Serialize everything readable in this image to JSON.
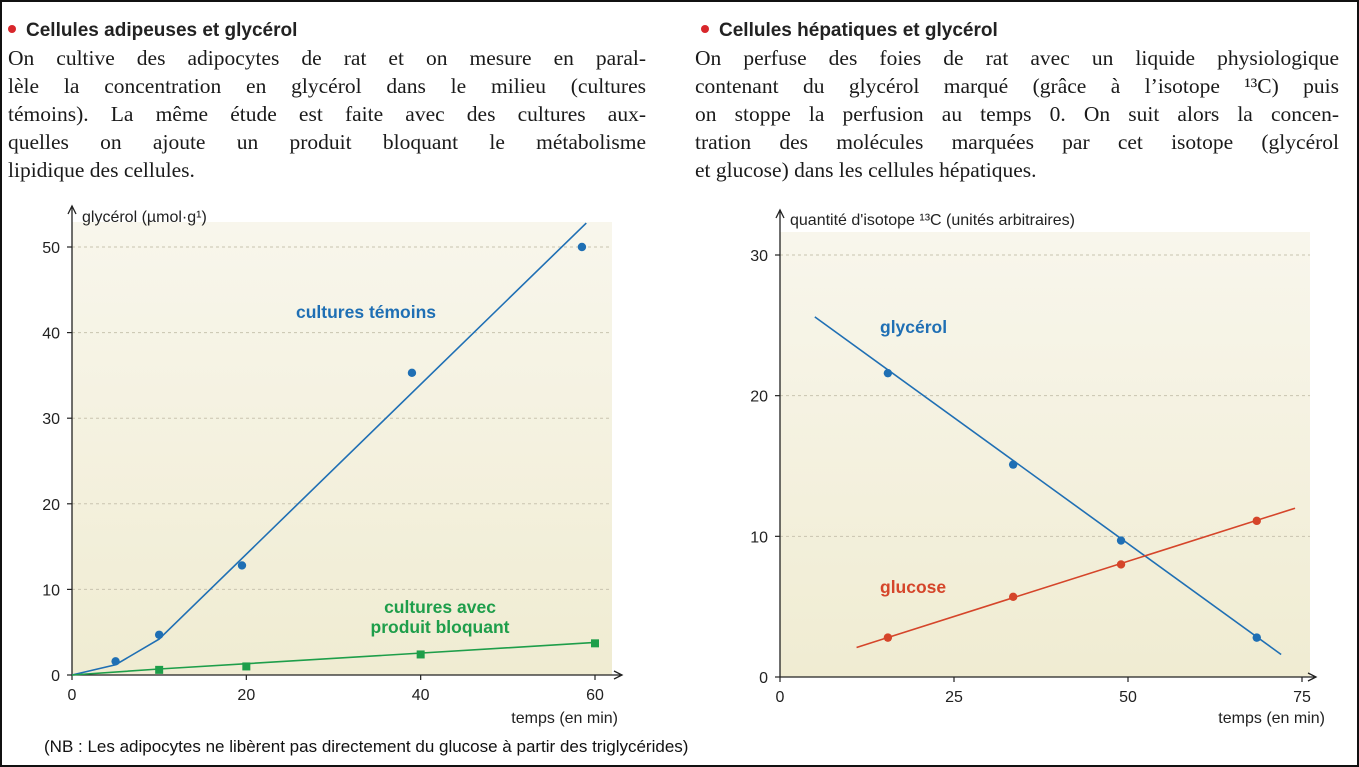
{
  "left": {
    "heading": "Cellules adipeuses et glycérol",
    "paragraph": [
      "On cultive des adipocytes de rat et on mesure en paral-",
      "lèle la concentration en glycérol dans le milieu (cultures",
      "témoins). La même étude est faite avec des cultures aux-",
      "quelles on ajoute un produit bloquant le métabolisme",
      "lipidique des cellules."
    ]
  },
  "right": {
    "heading": "Cellules hépatiques et glycérol",
    "paragraph": [
      "On perfuse des foies de rat avec un liquide physiologique",
      "contenant du glycérol marqué (grâce à l’isotope ¹³C) puis",
      "on stoppe la perfusion au temps 0. On suit alors la concen-",
      "tration des molécules marquées par cet isotope (glycérol",
      "et glucose) dans les cellules hépatiques."
    ]
  },
  "note": "(NB : Les adipocytes ne libèrent pas directement du glucose à partir des triglycérides)",
  "colors": {
    "bullet": "#d8262b",
    "blue": "#1f6fb4",
    "green": "#1e9e4a",
    "red": "#d5452a",
    "plot_bg_top": "#f8f6ec",
    "plot_bg_bottom": "#f0ecd2",
    "grid": "#c9c4b0"
  },
  "chart_data": [
    {
      "type": "line",
      "ylabel": "glycérol (µmol·g¹)",
      "xlabel": "temps (en min)",
      "xlim": [
        0,
        60
      ],
      "ylim": [
        0,
        50
      ],
      "xticks": [
        0,
        20,
        40,
        60
      ],
      "yticks": [
        0,
        10,
        20,
        30,
        40,
        50
      ],
      "grid": "horizontal dashed",
      "series": [
        {
          "name": "cultures témoins",
          "color": "#1f6fb4",
          "marker": "circle",
          "points": [
            [
              5,
              1.6
            ],
            [
              10,
              4.7
            ],
            [
              19.5,
              12.8
            ],
            [
              39,
              35.3
            ],
            [
              58.5,
              50
            ]
          ],
          "fit_line": [
            [
              0,
              0
            ],
            [
              5,
              1.2
            ],
            [
              10,
              4.2
            ],
            [
              59,
              52.8
            ]
          ]
        },
        {
          "name": "cultures avec produit bloquant",
          "color": "#1e9e4a",
          "marker": "square",
          "points": [
            [
              10,
              0.6
            ],
            [
              20,
              1.0
            ],
            [
              40,
              2.4
            ],
            [
              60,
              3.7
            ]
          ],
          "fit_line": [
            [
              0,
              0
            ],
            [
              10,
              0.7
            ],
            [
              60,
              3.8
            ]
          ]
        }
      ]
    },
    {
      "type": "line",
      "ylabel": "quantité d'isotope ¹³C (unités arbitraires)",
      "xlabel": "temps (en min)",
      "xlim": [
        0,
        75
      ],
      "ylim": [
        0,
        30
      ],
      "xticks": [
        0,
        25,
        50,
        75
      ],
      "yticks": [
        0,
        10,
        20,
        30
      ],
      "grid": "horizontal dashed",
      "series": [
        {
          "name": "glycérol",
          "color": "#1f6fb4",
          "marker": "circle",
          "points": [
            [
              15.5,
              21.6
            ],
            [
              33.5,
              15.1
            ],
            [
              49,
              9.7
            ],
            [
              68.5,
              2.8
            ]
          ],
          "fit_line": [
            [
              5,
              25.6
            ],
            [
              72,
              1.6
            ]
          ]
        },
        {
          "name": "glucose",
          "color": "#d5452a",
          "marker": "circle",
          "points": [
            [
              15.5,
              2.8
            ],
            [
              33.5,
              5.7
            ],
            [
              49,
              8.0
            ],
            [
              68.5,
              11.1
            ]
          ],
          "fit_line": [
            [
              11,
              2.1
            ],
            [
              74,
              12.0
            ]
          ]
        }
      ]
    }
  ]
}
